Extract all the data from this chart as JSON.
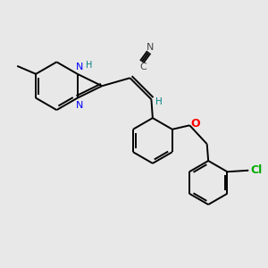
{
  "background_color": "#e8e8e8",
  "bond_color": "#000000",
  "bond_width": 1.4,
  "atom_colors": {
    "N": "#0000ff",
    "O": "#ff0000",
    "Cl": "#00aa00",
    "H": "#008080",
    "C_gray": "#444444"
  },
  "figsize": [
    3.0,
    3.0
  ],
  "dpi": 100
}
